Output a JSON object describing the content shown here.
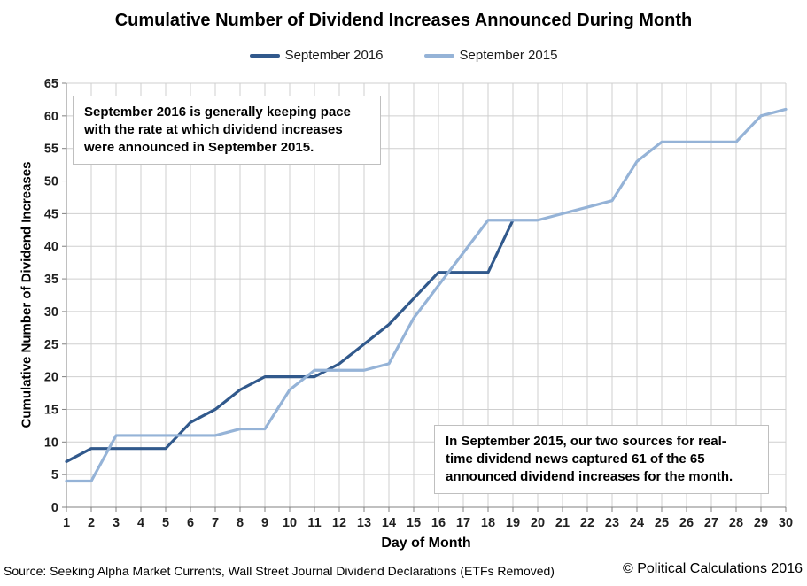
{
  "title": "Cumulative Number of Dividend Increases Announced During Month",
  "chart_data": {
    "type": "line",
    "title": "Cumulative Number of Dividend Increases Announced During Month",
    "xlabel": "Day of Month",
    "ylabel": "Cumulative Number of Dividend Increases",
    "xlim": [
      1,
      30
    ],
    "ylim": [
      0,
      65
    ],
    "xtick_step": 1,
    "ytick_step": 5,
    "grid": true,
    "legend_position": "top",
    "series": [
      {
        "name": "September 2016",
        "color": "#31598C",
        "x": [
          1,
          2,
          3,
          4,
          5,
          6,
          7,
          8,
          9,
          10,
          11,
          12,
          13,
          14,
          15,
          16,
          17,
          18,
          19
        ],
        "values": [
          7,
          9,
          9,
          9,
          9,
          13,
          15,
          18,
          20,
          20,
          20,
          22,
          25,
          28,
          32,
          36,
          36,
          36,
          44
        ]
      },
      {
        "name": "September 2015",
        "color": "#95B3D7",
        "x": [
          1,
          2,
          3,
          4,
          5,
          6,
          7,
          8,
          9,
          10,
          11,
          12,
          13,
          14,
          15,
          16,
          17,
          18,
          19,
          20,
          21,
          22,
          23,
          24,
          25,
          26,
          27,
          28,
          29,
          30
        ],
        "values": [
          4,
          4,
          11,
          11,
          11,
          11,
          11,
          12,
          12,
          18,
          21,
          21,
          21,
          22,
          29,
          34,
          39,
          44,
          44,
          44,
          45,
          46,
          47,
          53,
          56,
          56,
          56,
          56,
          60,
          61
        ]
      }
    ]
  },
  "annotations": [
    {
      "text": "September 2016 is generally keeping pace\nwith the rate at which dividend increases\nwere announced in September 2015."
    },
    {
      "text": "In September 2015, our two sources for real-\ntime dividend news captured 61 of the 65\nannounced dividend increases for the month."
    }
  ],
  "footer": {
    "source": "Source: Seeking Alpha Market Currents, Wall Street Journal Dividend Declarations (ETFs Removed)",
    "copyright": "© Political Calculations 2016"
  },
  "colors": {
    "grid": "#CFCFCF",
    "axis": "#808080",
    "tick_text": "#1f1f1f"
  }
}
